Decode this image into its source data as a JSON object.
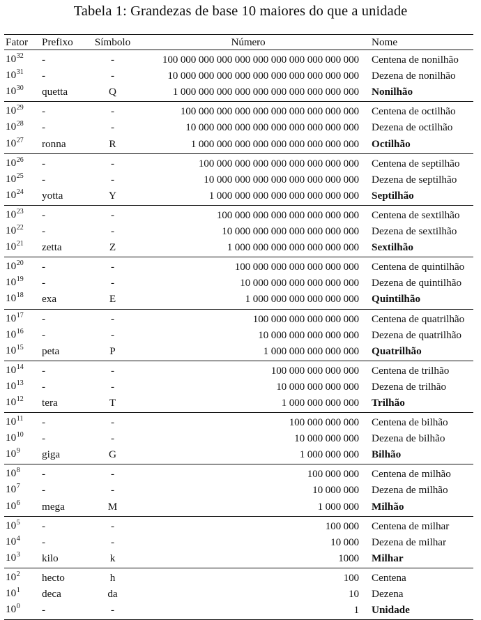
{
  "caption": "Tabela 1: Grandezas de base 10 maiores do que a unidade",
  "headers": {
    "fator": "Fator",
    "prefixo": "Prefixo",
    "simbolo": "Símbolo",
    "numero": "Número",
    "nome": "Nome"
  },
  "groups": [
    {
      "rows": [
        {
          "base": "10",
          "exp": "32",
          "prefix": "-",
          "symbol": "-",
          "number": "100 000 000 000 000 000 000 000 000 000 000",
          "name": "Centena de nonilhão",
          "bold": false
        },
        {
          "base": "10",
          "exp": "31",
          "prefix": "-",
          "symbol": "-",
          "number": "10 000 000 000 000 000 000 000 000 000 000",
          "name": "Dezena de nonilhão",
          "bold": false
        },
        {
          "base": "10",
          "exp": "30",
          "prefix": "quetta",
          "symbol": "Q",
          "number": "1 000 000 000 000 000 000 000 000 000 000",
          "name": "Nonilhão",
          "bold": true
        }
      ]
    },
    {
      "rows": [
        {
          "base": "10",
          "exp": "29",
          "prefix": "-",
          "symbol": "-",
          "number": "100 000 000 000 000 000 000 000 000 000",
          "name": "Centena de octilhão",
          "bold": false
        },
        {
          "base": "10",
          "exp": "28",
          "prefix": "-",
          "symbol": "-",
          "number": "10 000 000 000 000 000 000 000 000 000",
          "name": "Dezena de octilhão",
          "bold": false
        },
        {
          "base": "10",
          "exp": "27",
          "prefix": "ronna",
          "symbol": "R",
          "number": "1 000 000 000 000 000 000 000 000 000",
          "name": "Octilhão",
          "bold": true
        }
      ]
    },
    {
      "rows": [
        {
          "base": "10",
          "exp": "26",
          "prefix": "-",
          "symbol": "-",
          "number": "100 000 000 000 000 000 000 000 000",
          "name": "Centena de septilhão",
          "bold": false
        },
        {
          "base": "10",
          "exp": "25",
          "prefix": "-",
          "symbol": "-",
          "number": "10 000 000 000 000 000 000 000 000",
          "name": "Dezena de septilhão",
          "bold": false
        },
        {
          "base": "10",
          "exp": "24",
          "prefix": "yotta",
          "symbol": "Y",
          "number": "1 000 000 000 000 000 000 000 000",
          "name": "Septilhão",
          "bold": true
        }
      ]
    },
    {
      "rows": [
        {
          "base": "10",
          "exp": "23",
          "prefix": "-",
          "symbol": "-",
          "number": "100 000 000 000 000 000 000 000",
          "name": "Centena de sextilhão",
          "bold": false
        },
        {
          "base": "10",
          "exp": "22",
          "prefix": "-",
          "symbol": "-",
          "number": "10 000 000 000 000 000 000 000",
          "name": "Dezena de sextilhão",
          "bold": false
        },
        {
          "base": "10",
          "exp": "21",
          "prefix": "zetta",
          "symbol": "Z",
          "number": "1 000 000 000 000 000 000 000",
          "name": "Sextilhão",
          "bold": true
        }
      ]
    },
    {
      "rows": [
        {
          "base": "10",
          "exp": "20",
          "prefix": "-",
          "symbol": "-",
          "number": "100 000 000 000 000 000 000",
          "name": "Centena de quintilhão",
          "bold": false
        },
        {
          "base": "10",
          "exp": "19",
          "prefix": "-",
          "symbol": "-",
          "number": "10 000 000 000 000 000 000",
          "name": "Dezena de quintilhão",
          "bold": false
        },
        {
          "base": "10",
          "exp": "18",
          "prefix": "exa",
          "symbol": "E",
          "number": "1 000 000 000 000 000 000",
          "name": "Quintilhão",
          "bold": true
        }
      ]
    },
    {
      "rows": [
        {
          "base": "10",
          "exp": "17",
          "prefix": "-",
          "symbol": "-",
          "number": "100 000 000 000 000 000",
          "name": "Centena de quatrilhão",
          "bold": false
        },
        {
          "base": "10",
          "exp": "16",
          "prefix": "-",
          "symbol": "-",
          "number": "10 000 000 000 000 000",
          "name": "Dezena de quatrilhão",
          "bold": false
        },
        {
          "base": "10",
          "exp": "15",
          "prefix": "peta",
          "symbol": "P",
          "number": "1 000 000 000 000 000",
          "name": "Quatrilhão",
          "bold": true
        }
      ]
    },
    {
      "rows": [
        {
          "base": "10",
          "exp": "14",
          "prefix": "-",
          "symbol": "-",
          "number": "100 000 000 000 000",
          "name": "Centena de trilhão",
          "bold": false
        },
        {
          "base": "10",
          "exp": "13",
          "prefix": "-",
          "symbol": "-",
          "number": "10 000 000 000 000",
          "name": "Dezena de trilhão",
          "bold": false
        },
        {
          "base": "10",
          "exp": "12",
          "prefix": "tera",
          "symbol": "T",
          "number": "1 000 000 000 000",
          "name": "Trilhão",
          "bold": true
        }
      ]
    },
    {
      "rows": [
        {
          "base": "10",
          "exp": "11",
          "prefix": "-",
          "symbol": "-",
          "number": "100 000 000 000",
          "name": "Centena de bilhão",
          "bold": false
        },
        {
          "base": "10",
          "exp": "10",
          "prefix": "-",
          "symbol": "-",
          "number": "10 000 000 000",
          "name": "Dezena de bilhão",
          "bold": false
        },
        {
          "base": "10",
          "exp": "9",
          "prefix": "giga",
          "symbol": "G",
          "number": "1 000 000 000",
          "name": "Bilhão",
          "bold": true
        }
      ]
    },
    {
      "rows": [
        {
          "base": "10",
          "exp": "8",
          "prefix": "-",
          "symbol": "-",
          "number": "100 000 000",
          "name": "Centena de milhão",
          "bold": false
        },
        {
          "base": "10",
          "exp": "7",
          "prefix": "-",
          "symbol": "-",
          "number": "10 000 000",
          "name": "Dezena de milhão",
          "bold": false
        },
        {
          "base": "10",
          "exp": "6",
          "prefix": "mega",
          "symbol": "M",
          "number": "1 000 000",
          "name": "Milhão",
          "bold": true
        }
      ]
    },
    {
      "rows": [
        {
          "base": "10",
          "exp": "5",
          "prefix": "-",
          "symbol": "-",
          "number": "100 000",
          "name": "Centena de milhar",
          "bold": false
        },
        {
          "base": "10",
          "exp": "4",
          "prefix": "-",
          "symbol": "-",
          "number": "10 000",
          "name": "Dezena de milhar",
          "bold": false
        },
        {
          "base": "10",
          "exp": "3",
          "prefix": "kilo",
          "symbol": "k",
          "number": "1000",
          "name": "Milhar",
          "bold": true
        }
      ]
    },
    {
      "rows": [
        {
          "base": "10",
          "exp": "2",
          "prefix": "hecto",
          "symbol": "h",
          "number": "100",
          "name": "Centena",
          "bold": false
        },
        {
          "base": "10",
          "exp": "1",
          "prefix": "deca",
          "symbol": "da",
          "number": "10",
          "name": "Dezena",
          "bold": false
        },
        {
          "base": "10",
          "exp": "0",
          "prefix": "-",
          "symbol": "-",
          "number": "1",
          "name": "Unidade",
          "bold": true
        }
      ]
    }
  ]
}
